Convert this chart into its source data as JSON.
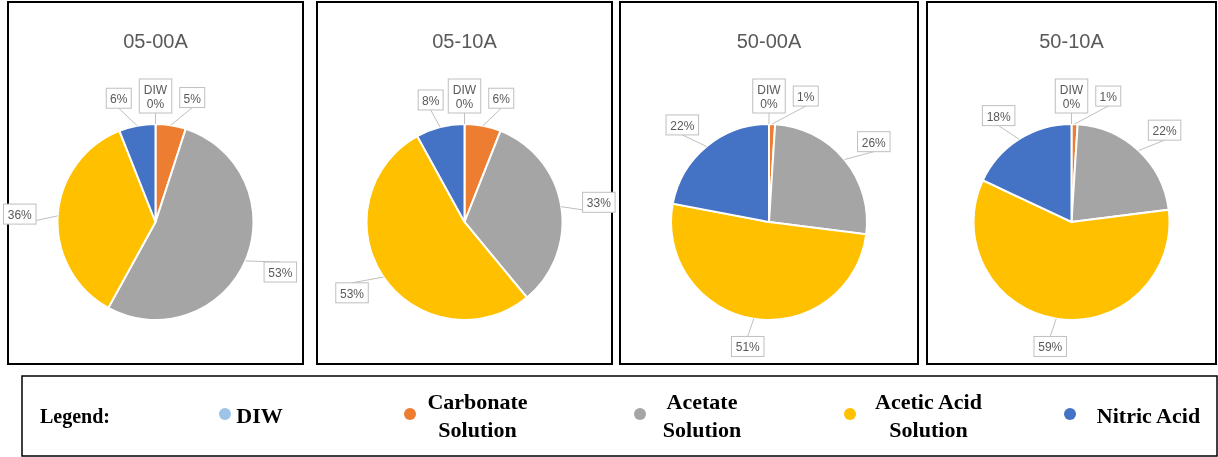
{
  "chart_data": [
    {
      "type": "pie",
      "title": "05-00A",
      "categories": [
        "DIW",
        "Carbonate Solution",
        "Acetate Solution",
        "Acetic Acid Solution",
        "Nitric Acid"
      ],
      "values": [
        0,
        5,
        53,
        36,
        6
      ],
      "colors": [
        "#9dc3e6",
        "#ed7d31",
        "#a5a5a5",
        "#ffc000",
        "#4472c4"
      ],
      "value_labels": [
        "0%",
        "5%",
        "53%",
        "36%",
        "6%"
      ],
      "legend": "bottom",
      "legend_title": "Legend:"
    },
    {
      "type": "pie",
      "title": "05-10A",
      "categories": [
        "DIW",
        null,
        null,
        null,
        null
      ],
      "values": [
        0,
        6,
        33,
        53,
        8
      ],
      "colors": [
        "#9dc3e6",
        "#ed7d31",
        "#a5a5a5",
        "#ffc000",
        "#4472c4"
      ],
      "value_labels": [
        "0%",
        "6%",
        "33%",
        "53%",
        "8%"
      ]
    },
    {
      "type": "pie",
      "title": "50-00A",
      "categories": [
        "DIW",
        null,
        null,
        null,
        null
      ],
      "values": [
        0,
        1,
        26,
        51,
        22
      ],
      "colors": [
        "#9dc3e6",
        "#ed7d31",
        "#a5a5a5",
        "#ffc000",
        "#4472c4"
      ],
      "value_labels": [
        "0%",
        "1%",
        "26%",
        "51%",
        "22%"
      ]
    },
    {
      "type": "pie",
      "title": "50-10A",
      "categories": [
        "DIW",
        null,
        null,
        null,
        null
      ],
      "values": [
        0,
        1,
        22,
        59,
        18
      ],
      "colors": [
        "#9dc3e6",
        "#ed7d31",
        "#a5a5a5",
        "#ffc000",
        "#4472c4"
      ],
      "value_labels": [
        "0%",
        "1%",
        "22%",
        "59%",
        "18%"
      ]
    }
  ]
}
